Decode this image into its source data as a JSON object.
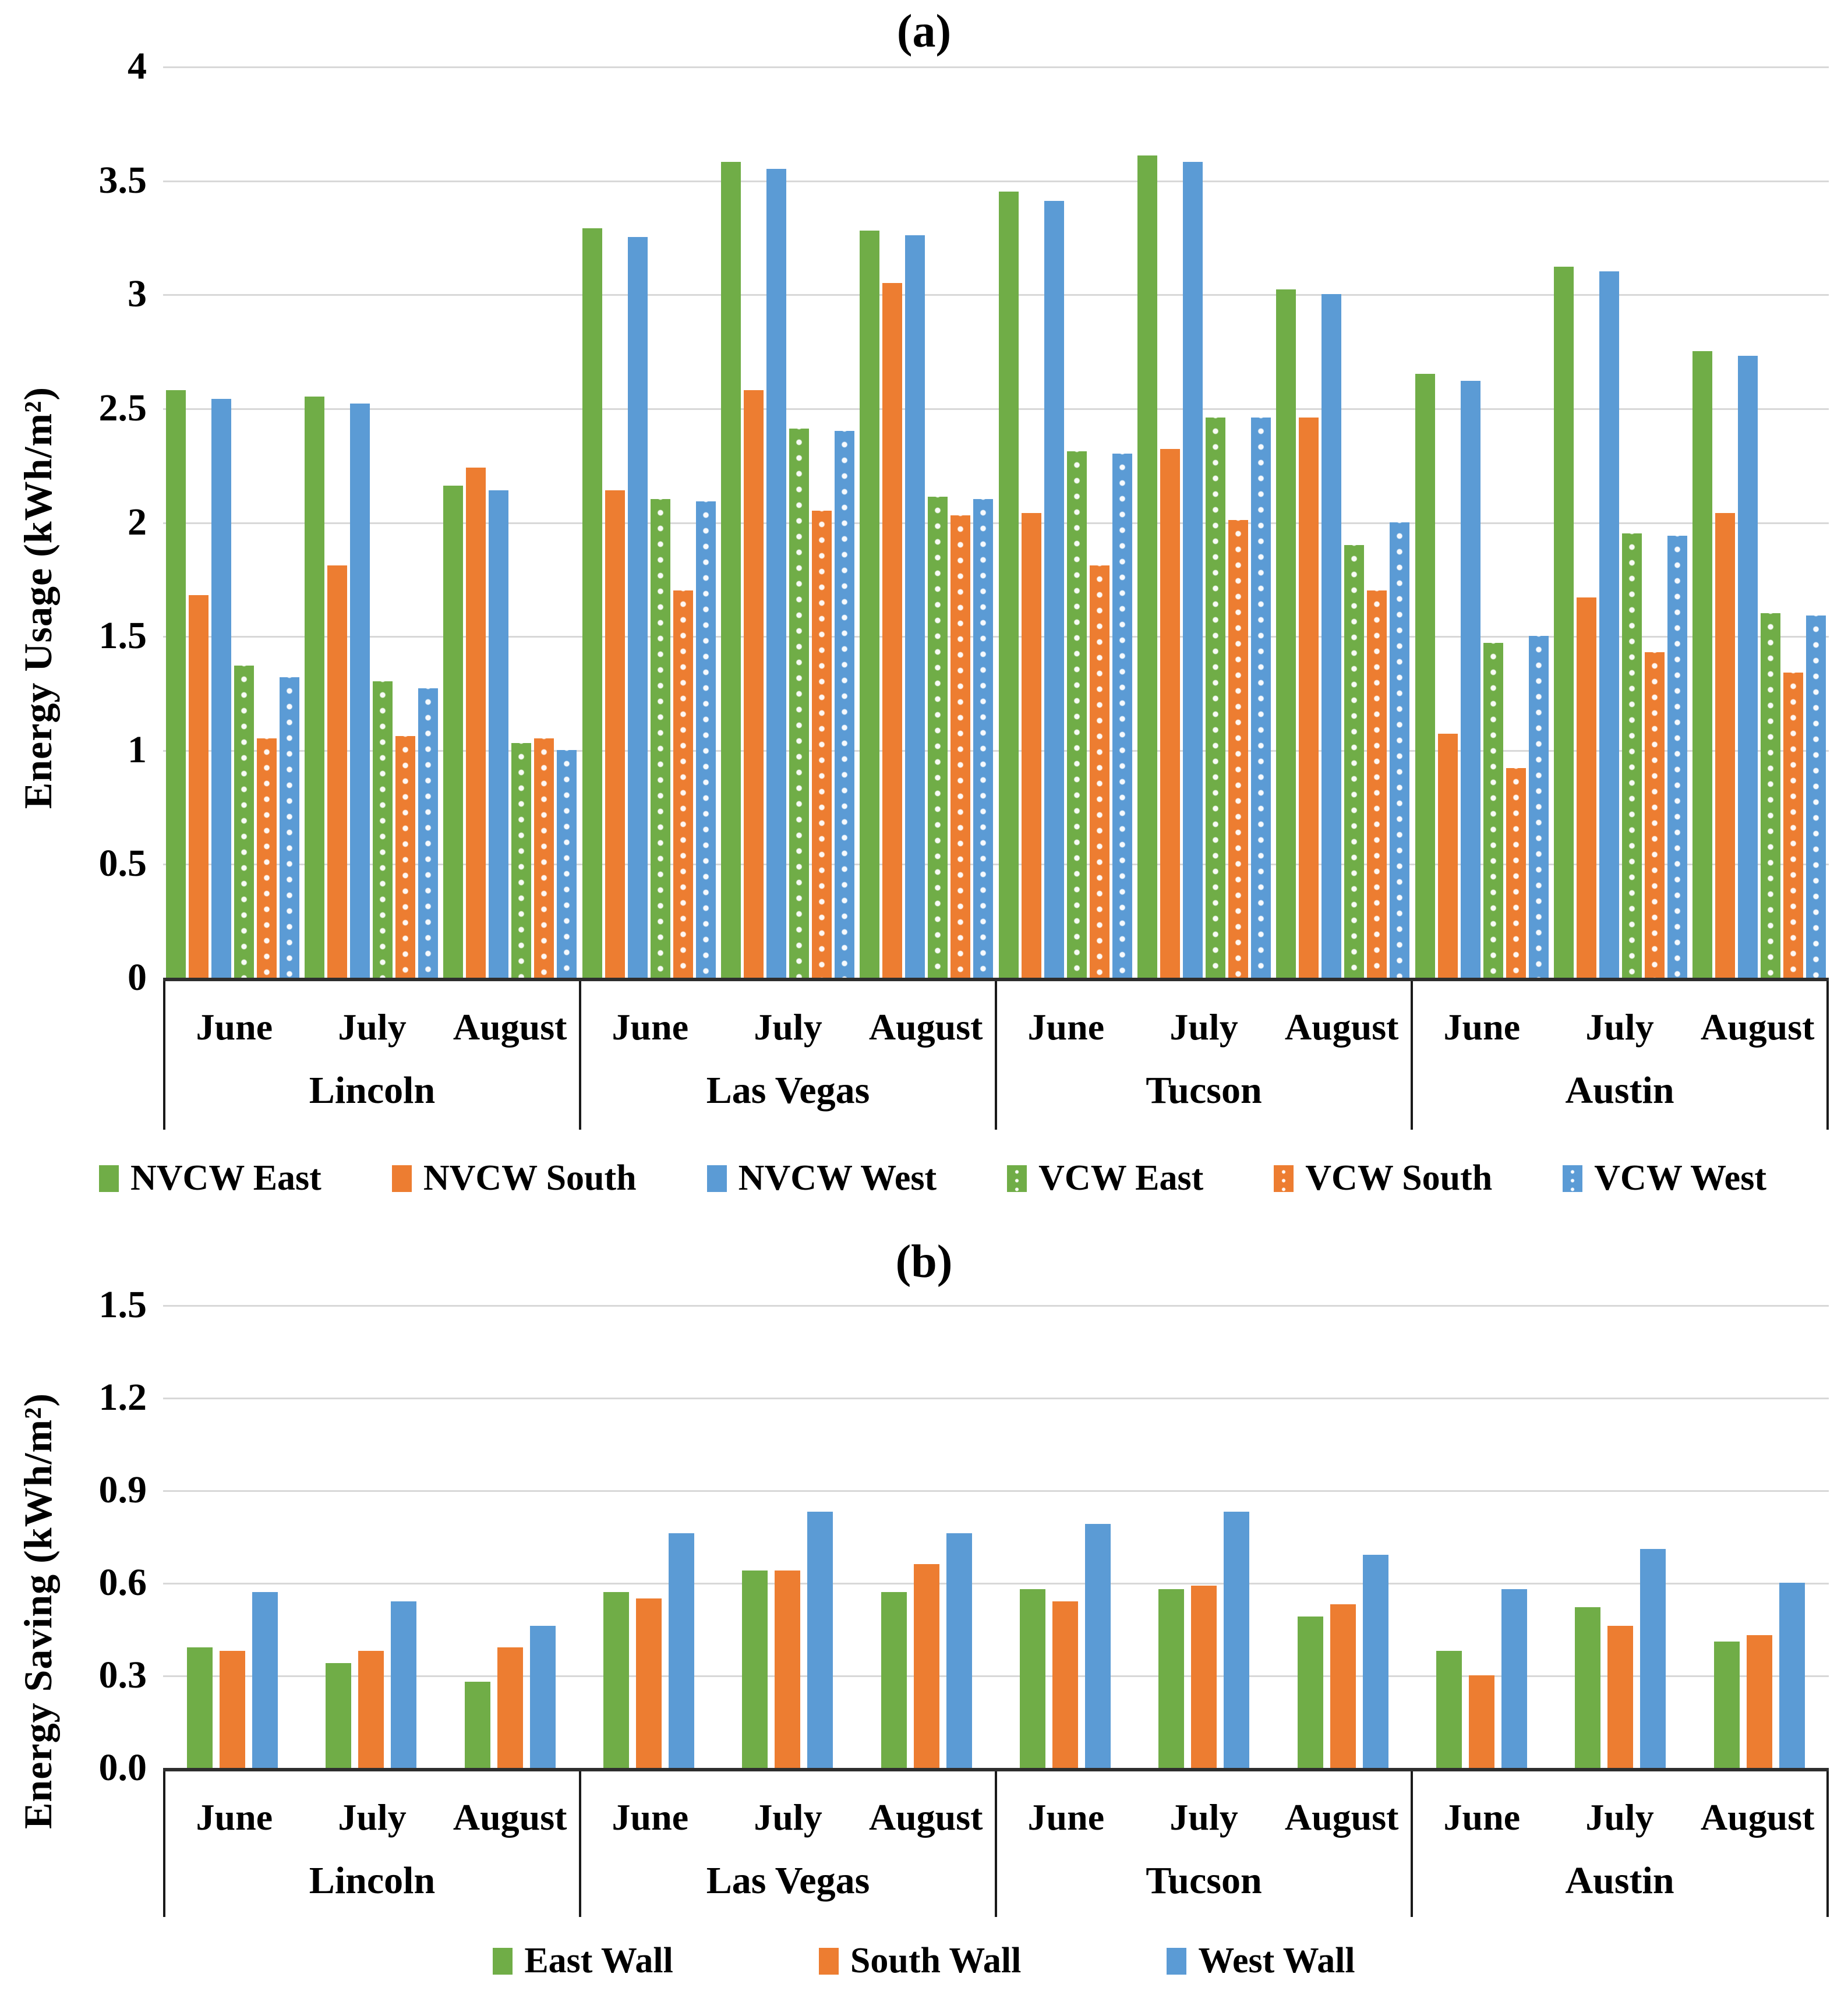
{
  "figure": {
    "type": "two-panel bar chart figure",
    "background": "#FFFFFF"
  },
  "colors": {
    "green": "#70AD47",
    "orange": "#ED7D31",
    "blue": "#5B9BD5",
    "gridline": "#D8D8D8",
    "axis_line": "#2E2E2E",
    "text": "#000000"
  },
  "chart_data": [
    {
      "id": "a",
      "type": "bar",
      "title": "(a)",
      "ylabel": "Energy Usage (kWh/m²)",
      "ylim": [
        0,
        4
      ],
      "grid": true,
      "legend_position": "bottom",
      "yticks": [
        {
          "v": 4,
          "label": "4"
        },
        {
          "v": 3.5,
          "label": "3.5"
        },
        {
          "v": 3,
          "label": "3"
        },
        {
          "v": 2.5,
          "label": "2.5"
        },
        {
          "v": 2,
          "label": "2"
        },
        {
          "v": 1.5,
          "label": "1.5"
        },
        {
          "v": 1,
          "label": "1"
        },
        {
          "v": 0.5,
          "label": "0.5"
        },
        {
          "v": 0,
          "label": "0"
        }
      ],
      "categories": {
        "cities": [
          "Lincoln",
          "Las Vegas",
          "Tucson",
          "Austin"
        ],
        "months": [
          "June",
          "July",
          "August"
        ]
      },
      "series": [
        {
          "name": "NVCW East",
          "color": "#70AD47",
          "pattern": "solid",
          "values": [
            [
              2.58,
              2.55,
              2.16
            ],
            [
              3.29,
              3.58,
              3.28
            ],
            [
              3.45,
              3.61,
              3.02
            ],
            [
              2.65,
              3.12,
              2.75
            ]
          ]
        },
        {
          "name": "NVCW South",
          "color": "#ED7D31",
          "pattern": "solid",
          "values": [
            [
              1.68,
              1.81,
              2.24
            ],
            [
              2.14,
              2.58,
              3.05
            ],
            [
              2.04,
              2.32,
              2.46
            ],
            [
              1.07,
              1.67,
              2.04
            ]
          ]
        },
        {
          "name": "NVCW West",
          "color": "#5B9BD5",
          "pattern": "solid",
          "values": [
            [
              2.54,
              2.52,
              2.14
            ],
            [
              3.25,
              3.55,
              3.26
            ],
            [
              3.41,
              3.58,
              3.0
            ],
            [
              2.62,
              3.1,
              2.73
            ]
          ]
        },
        {
          "name": "VCW East",
          "color": "#70AD47",
          "pattern": "dots",
          "values": [
            [
              1.37,
              1.3,
              1.03
            ],
            [
              2.1,
              2.41,
              2.11
            ],
            [
              2.31,
              2.46,
              1.9
            ],
            [
              1.47,
              1.95,
              1.6
            ]
          ]
        },
        {
          "name": "VCW South",
          "color": "#ED7D31",
          "pattern": "dots",
          "values": [
            [
              1.05,
              1.06,
              1.05
            ],
            [
              1.7,
              2.05,
              2.03
            ],
            [
              1.81,
              2.01,
              1.7
            ],
            [
              0.92,
              1.43,
              1.34
            ]
          ]
        },
        {
          "name": "VCW West",
          "color": "#5B9BD5",
          "pattern": "dots",
          "values": [
            [
              1.32,
              1.27,
              1.0
            ],
            [
              2.09,
              2.4,
              2.1
            ],
            [
              2.3,
              2.46,
              2.0
            ],
            [
              1.5,
              1.94,
              1.59
            ]
          ]
        }
      ]
    },
    {
      "id": "b",
      "type": "bar",
      "title": "(b)",
      "ylabel": "Energy Saving (kWh/m²)",
      "ylim": [
        0,
        1.5
      ],
      "grid": true,
      "legend_position": "bottom",
      "yticks": [
        {
          "v": 1.5,
          "label": "1.5"
        },
        {
          "v": 1.2,
          "label": "1.2"
        },
        {
          "v": 0.9,
          "label": "0.9"
        },
        {
          "v": 0.6,
          "label": "0.6"
        },
        {
          "v": 0.3,
          "label": "0.3"
        },
        {
          "v": 0,
          "label": "0.0"
        }
      ],
      "categories": {
        "cities": [
          "Lincoln",
          "Las Vegas",
          "Tucson",
          "Austin"
        ],
        "months": [
          "June",
          "July",
          "August"
        ]
      },
      "series": [
        {
          "name": "East Wall",
          "color": "#70AD47",
          "pattern": "solid",
          "values": [
            [
              0.39,
              0.34,
              0.28
            ],
            [
              0.57,
              0.64,
              0.57
            ],
            [
              0.58,
              0.58,
              0.49
            ],
            [
              0.38,
              0.52,
              0.41
            ]
          ]
        },
        {
          "name": "South Wall",
          "color": "#ED7D31",
          "pattern": "solid",
          "values": [
            [
              0.38,
              0.38,
              0.39
            ],
            [
              0.55,
              0.64,
              0.66
            ],
            [
              0.54,
              0.59,
              0.53
            ],
            [
              0.3,
              0.46,
              0.43
            ]
          ]
        },
        {
          "name": "West Wall",
          "color": "#5B9BD5",
          "pattern": "solid",
          "values": [
            [
              0.57,
              0.54,
              0.46
            ],
            [
              0.76,
              0.83,
              0.76
            ],
            [
              0.79,
              0.83,
              0.69
            ],
            [
              0.58,
              0.71,
              0.6
            ]
          ]
        }
      ]
    }
  ]
}
